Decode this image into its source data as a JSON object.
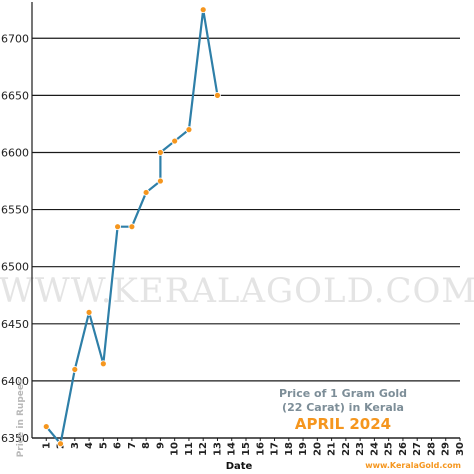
{
  "chart_data": {
    "type": "line",
    "x": [
      1,
      2,
      3,
      4,
      5,
      6,
      7,
      8,
      9,
      9,
      10,
      11,
      12,
      13
    ],
    "values": [
      6360,
      6345,
      6410,
      6460,
      6415,
      6535,
      6535,
      6565,
      6575,
      6600,
      6610,
      6620,
      6725,
      6650
    ],
    "x_ticks": [
      1,
      2,
      3,
      4,
      5,
      6,
      7,
      8,
      9,
      10,
      11,
      12,
      13,
      14,
      15,
      16,
      17,
      18,
      19,
      20,
      21,
      22,
      23,
      24,
      25,
      26,
      27,
      28,
      29,
      30
    ],
    "y_ticks": [
      6350,
      6400,
      6450,
      6500,
      6550,
      6600,
      6650,
      6700
    ],
    "xlim": [
      0,
      30
    ],
    "ylim": [
      6350,
      6730
    ],
    "xlabel": "Date",
    "ylabel": "Price in Rupees",
    "grid": "horizontal",
    "line_color": "#2e7fa8",
    "marker_color": "#f5961e",
    "annotation": {
      "line1": "Price of 1 Gram Gold",
      "line2": "(22 Carat) in Kerala",
      "month": "APRIL 2024"
    },
    "watermark": "WWW.KERALAGOLD.COM",
    "credit": "www.KeralaGold.com"
  }
}
